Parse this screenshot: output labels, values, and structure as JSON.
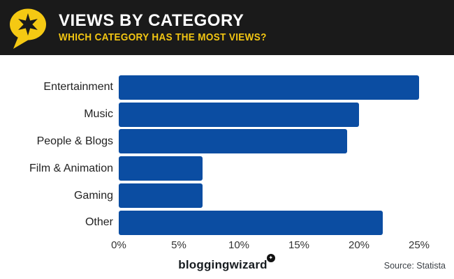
{
  "header": {
    "title": "VIEWS BY CATEGORY",
    "subtitle": "WHICH CATEGORY HAS THE MOST VIEWS?"
  },
  "footer": {
    "brand": "bloggingwizard",
    "source": "Source: Statista"
  },
  "icons": {
    "logo": "speech-bubble-with-star",
    "brand_badge_star": "✦"
  },
  "colors": {
    "header_bg": "#1a1a1a",
    "accent_yellow": "#f3c612",
    "bar_blue": "#0b4da2",
    "title_white": "#ffffff",
    "label_dark": "#222222",
    "source_gray": "#3c4147"
  },
  "chart_data": {
    "type": "bar",
    "orientation": "horizontal",
    "title": "VIEWS BY CATEGORY",
    "subtitle": "WHICH CATEGORY HAS THE MOST VIEWS?",
    "categories": [
      "Entertainment",
      "Music",
      "People & Blogs",
      "Film & Animation",
      "Gaming",
      "Other"
    ],
    "values": [
      25,
      20,
      19,
      7,
      7,
      22
    ],
    "unit": "%",
    "xlabel": "",
    "ylabel": "",
    "xlim": [
      0,
      25
    ],
    "x_ticks": [
      "0%",
      "5%",
      "10%",
      "15%",
      "20%",
      "25%"
    ],
    "grid": false,
    "legend": false
  }
}
